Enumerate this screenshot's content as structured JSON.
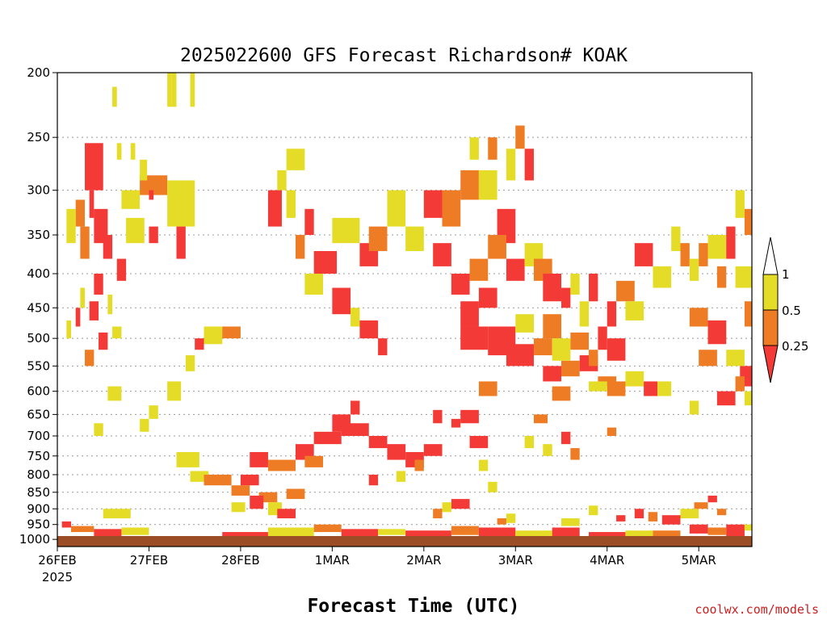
{
  "chart_data": {
    "type": "heatmap",
    "title": "2025022600 GFS Forecast Richardson# KOAK",
    "xlabel": "Forecast Time (UTC)",
    "ylabel": "",
    "credit": "coolwx.com/models",
    "x_tick_labels": [
      "26FEB",
      "27FEB",
      "28FEB",
      "1MAR",
      "2MAR",
      "3MAR",
      "4MAR",
      "5MAR"
    ],
    "x_year_label": "2025",
    "x_range_days": [
      0,
      7.58
    ],
    "y_ticks": [
      200,
      250,
      300,
      350,
      400,
      450,
      500,
      550,
      600,
      650,
      700,
      750,
      800,
      850,
      900,
      950,
      1000
    ],
    "y_units": "hPa",
    "y_range": [
      200,
      1025
    ],
    "gridlines": "dotted",
    "colorbar": {
      "labels": [
        "1",
        "0.5",
        "0.25"
      ],
      "classes": [
        {
          "range": "0.5-1",
          "color": "#e5dc28"
        },
        {
          "range": "0.25-0.5",
          "color": "#ee7c24"
        },
        {
          "range": "<0.25",
          "color": "#f43a36"
        }
      ]
    },
    "surface_color": "#9b4d26",
    "cells": [
      [
        0.3,
        0.5,
        255,
        300,
        2
      ],
      [
        0.35,
        0.4,
        300,
        330,
        2
      ],
      [
        0.2,
        0.3,
        310,
        340,
        1
      ],
      [
        0.4,
        0.55,
        320,
        360,
        2
      ],
      [
        0.25,
        0.35,
        340,
        380,
        1
      ],
      [
        0.1,
        0.2,
        320,
        360,
        0
      ],
      [
        0.5,
        0.6,
        350,
        380,
        2
      ],
      [
        0.7,
        0.9,
        300,
        320,
        0
      ],
      [
        0.9,
        1.2,
        285,
        305,
        1
      ],
      [
        0.9,
        0.98,
        270,
        290,
        0
      ],
      [
        1.0,
        1.05,
        300,
        310,
        2
      ],
      [
        1.2,
        1.5,
        290,
        340,
        0
      ],
      [
        0.75,
        0.95,
        330,
        360,
        0
      ],
      [
        1.3,
        1.4,
        340,
        380,
        2
      ],
      [
        1.0,
        1.1,
        340,
        360,
        2
      ],
      [
        0.65,
        0.7,
        255,
        270,
        0
      ],
      [
        0.8,
        0.85,
        255,
        270,
        0
      ],
      [
        0.6,
        0.65,
        210,
        225,
        0
      ],
      [
        1.2,
        1.25,
        200,
        225,
        0
      ],
      [
        1.25,
        1.3,
        200,
        225,
        0
      ],
      [
        1.45,
        1.5,
        200,
        225,
        0
      ],
      [
        0.65,
        0.75,
        380,
        410,
        2
      ],
      [
        0.4,
        0.5,
        400,
        430,
        2
      ],
      [
        0.25,
        0.3,
        420,
        450,
        0
      ],
      [
        0.35,
        0.45,
        440,
        470,
        2
      ],
      [
        0.55,
        0.6,
        430,
        460,
        0
      ],
      [
        0.2,
        0.25,
        450,
        480,
        2
      ],
      [
        0.1,
        0.15,
        470,
        500,
        0
      ],
      [
        0.45,
        0.55,
        490,
        520,
        2
      ],
      [
        0.6,
        0.7,
        480,
        500,
        0
      ],
      [
        0.3,
        0.4,
        520,
        550,
        1
      ],
      [
        1.6,
        1.8,
        480,
        510,
        0
      ],
      [
        1.8,
        2.0,
        480,
        500,
        1
      ],
      [
        1.5,
        1.6,
        500,
        520,
        2
      ],
      [
        1.4,
        1.5,
        530,
        560,
        0
      ],
      [
        1.2,
        1.35,
        580,
        620,
        0
      ],
      [
        1.0,
        1.1,
        630,
        660,
        0
      ],
      [
        0.9,
        1.0,
        660,
        690,
        0
      ],
      [
        0.55,
        0.7,
        590,
        620,
        0
      ],
      [
        0.4,
        0.5,
        670,
        700,
        0
      ],
      [
        1.3,
        1.55,
        740,
        780,
        0
      ],
      [
        1.45,
        1.65,
        790,
        820,
        0
      ],
      [
        1.6,
        1.9,
        800,
        830,
        1
      ],
      [
        1.9,
        2.1,
        830,
        860,
        1
      ],
      [
        2.0,
        2.2,
        800,
        830,
        2
      ],
      [
        2.2,
        2.4,
        850,
        880,
        1
      ],
      [
        2.3,
        2.45,
        880,
        920,
        0
      ],
      [
        2.5,
        2.7,
        840,
        870,
        1
      ],
      [
        2.4,
        2.6,
        900,
        930,
        2
      ],
      [
        2.1,
        2.25,
        860,
        900,
        2
      ],
      [
        1.9,
        2.05,
        880,
        910,
        0
      ],
      [
        2.1,
        2.3,
        740,
        780,
        2
      ],
      [
        2.3,
        2.6,
        760,
        790,
        1
      ],
      [
        2.6,
        2.8,
        720,
        760,
        2
      ],
      [
        2.8,
        3.1,
        690,
        720,
        2
      ],
      [
        2.7,
        2.9,
        750,
        780,
        1
      ],
      [
        3.0,
        3.2,
        650,
        690,
        2
      ],
      [
        3.1,
        3.4,
        670,
        700,
        2
      ],
      [
        3.2,
        3.3,
        620,
        650,
        2
      ],
      [
        3.4,
        3.6,
        700,
        730,
        2
      ],
      [
        3.6,
        3.8,
        720,
        760,
        2
      ],
      [
        3.8,
        4.0,
        740,
        780,
        2
      ],
      [
        3.9,
        4.0,
        760,
        790,
        1
      ],
      [
        4.0,
        4.2,
        720,
        750,
        2
      ],
      [
        4.1,
        4.2,
        640,
        670,
        2
      ],
      [
        4.3,
        4.4,
        660,
        680,
        2
      ],
      [
        3.7,
        3.8,
        790,
        820,
        0
      ],
      [
        3.4,
        3.5,
        800,
        830,
        2
      ],
      [
        2.5,
        2.7,
        260,
        280,
        0
      ],
      [
        2.4,
        2.5,
        280,
        300,
        0
      ],
      [
        2.3,
        2.45,
        300,
        340,
        2
      ],
      [
        2.5,
        2.6,
        300,
        330,
        0
      ],
      [
        2.7,
        2.8,
        320,
        350,
        2
      ],
      [
        2.6,
        2.7,
        350,
        380,
        1
      ],
      [
        2.8,
        3.05,
        370,
        400,
        2
      ],
      [
        2.7,
        2.9,
        400,
        430,
        0
      ],
      [
        3.0,
        3.2,
        420,
        460,
        2
      ],
      [
        3.2,
        3.3,
        450,
        480,
        0
      ],
      [
        3.3,
        3.5,
        470,
        500,
        2
      ],
      [
        3.5,
        3.6,
        500,
        530,
        2
      ],
      [
        3.0,
        3.3,
        330,
        360,
        0
      ],
      [
        3.3,
        3.5,
        360,
        390,
        2
      ],
      [
        3.4,
        3.6,
        340,
        370,
        1
      ],
      [
        3.6,
        3.8,
        300,
        340,
        0
      ],
      [
        3.8,
        4.0,
        340,
        370,
        0
      ],
      [
        4.0,
        4.2,
        300,
        330,
        2
      ],
      [
        4.2,
        4.4,
        300,
        340,
        1
      ],
      [
        4.4,
        4.6,
        280,
        310,
        1
      ],
      [
        4.6,
        4.8,
        280,
        310,
        0
      ],
      [
        4.1,
        4.3,
        360,
        390,
        2
      ],
      [
        4.3,
        4.5,
        400,
        430,
        2
      ],
      [
        4.5,
        4.7,
        380,
        410,
        1
      ],
      [
        4.6,
        4.8,
        420,
        450,
        2
      ],
      [
        4.4,
        4.6,
        440,
        480,
        2
      ],
      [
        4.8,
        5.0,
        320,
        360,
        2
      ],
      [
        4.9,
        5.0,
        260,
        290,
        0
      ],
      [
        5.0,
        5.1,
        240,
        260,
        1
      ],
      [
        4.5,
        4.6,
        250,
        270,
        0
      ],
      [
        4.7,
        4.8,
        250,
        270,
        1
      ],
      [
        5.1,
        5.2,
        260,
        290,
        2
      ],
      [
        4.7,
        4.9,
        350,
        380,
        1
      ],
      [
        4.9,
        5.1,
        380,
        410,
        2
      ],
      [
        5.1,
        5.3,
        360,
        390,
        0
      ],
      [
        5.2,
        5.4,
        380,
        410,
        1
      ],
      [
        5.3,
        5.5,
        400,
        440,
        2
      ],
      [
        4.4,
        4.7,
        480,
        520,
        2
      ],
      [
        4.7,
        5.0,
        480,
        530,
        2
      ],
      [
        4.9,
        5.2,
        510,
        550,
        2
      ],
      [
        5.2,
        5.4,
        500,
        530,
        1
      ],
      [
        5.0,
        5.2,
        460,
        490,
        0
      ],
      [
        5.3,
        5.5,
        460,
        500,
        1
      ],
      [
        5.3,
        5.5,
        550,
        580,
        2
      ],
      [
        5.5,
        5.7,
        540,
        570,
        1
      ],
      [
        5.4,
        5.6,
        500,
        540,
        0
      ],
      [
        5.6,
        5.8,
        490,
        520,
        1
      ],
      [
        5.7,
        5.9,
        530,
        560,
        2
      ],
      [
        5.9,
        6.1,
        570,
        590,
        1
      ],
      [
        4.6,
        4.8,
        580,
        610,
        1
      ],
      [
        4.4,
        4.6,
        640,
        670,
        2
      ],
      [
        4.5,
        4.7,
        700,
        730,
        2
      ],
      [
        4.6,
        4.7,
        760,
        790,
        0
      ],
      [
        4.7,
        4.8,
        820,
        850,
        0
      ],
      [
        4.3,
        4.5,
        870,
        900,
        2
      ],
      [
        4.1,
        4.2,
        900,
        930,
        1
      ],
      [
        4.2,
        4.3,
        880,
        910,
        0
      ],
      [
        5.5,
        5.6,
        420,
        450,
        2
      ],
      [
        5.6,
        5.7,
        400,
        430,
        0
      ],
      [
        5.7,
        5.8,
        440,
        480,
        0
      ],
      [
        5.8,
        5.9,
        400,
        440,
        2
      ],
      [
        5.9,
        6.0,
        480,
        520,
        2
      ],
      [
        5.8,
        5.9,
        520,
        550,
        1
      ],
      [
        6.0,
        6.2,
        500,
        540,
        2
      ],
      [
        5.4,
        5.6,
        590,
        620,
        1
      ],
      [
        6.0,
        6.1,
        440,
        480,
        2
      ],
      [
        6.1,
        6.3,
        410,
        440,
        1
      ],
      [
        6.2,
        6.4,
        440,
        470,
        0
      ],
      [
        6.3,
        6.5,
        360,
        390,
        2
      ],
      [
        6.5,
        6.7,
        390,
        420,
        0
      ],
      [
        6.2,
        6.4,
        560,
        590,
        0
      ],
      [
        6.4,
        6.55,
        580,
        610,
        2
      ],
      [
        6.55,
        6.7,
        580,
        610,
        0
      ],
      [
        6.0,
        6.2,
        580,
        610,
        1
      ],
      [
        6.7,
        6.8,
        340,
        370,
        0
      ],
      [
        6.8,
        6.9,
        360,
        390,
        1
      ],
      [
        6.9,
        7.0,
        380,
        410,
        0
      ],
      [
        7.0,
        7.1,
        360,
        390,
        1
      ],
      [
        7.1,
        7.3,
        350,
        380,
        0
      ],
      [
        7.2,
        7.3,
        390,
        420,
        1
      ],
      [
        7.3,
        7.4,
        340,
        380,
        2
      ],
      [
        7.4,
        7.5,
        300,
        330,
        0
      ],
      [
        7.5,
        7.58,
        320,
        350,
        1
      ],
      [
        7.4,
        7.58,
        390,
        420,
        0
      ],
      [
        7.5,
        7.58,
        440,
        480,
        1
      ],
      [
        7.45,
        7.58,
        550,
        590,
        2
      ],
      [
        7.5,
        7.58,
        600,
        630,
        0
      ],
      [
        6.9,
        7.1,
        450,
        480,
        1
      ],
      [
        7.1,
        7.3,
        470,
        510,
        2
      ],
      [
        7.3,
        7.5,
        520,
        550,
        0
      ],
      [
        7.0,
        7.2,
        520,
        550,
        1
      ],
      [
        6.9,
        7.0,
        620,
        650,
        0
      ],
      [
        7.2,
        7.4,
        600,
        630,
        2
      ],
      [
        7.4,
        7.5,
        570,
        600,
        1
      ],
      [
        5.8,
        6.0,
        580,
        600,
        0
      ],
      [
        6.0,
        6.1,
        680,
        700,
        1
      ],
      [
        5.2,
        5.35,
        650,
        670,
        1
      ],
      [
        5.5,
        5.6,
        690,
        720,
        2
      ],
      [
        5.1,
        5.2,
        700,
        730,
        0
      ],
      [
        5.3,
        5.4,
        720,
        750,
        0
      ],
      [
        5.6,
        5.7,
        730,
        760,
        1
      ],
      [
        0.05,
        0.15,
        940,
        960,
        2
      ],
      [
        0.15,
        0.4,
        955,
        975,
        1
      ],
      [
        0.4,
        0.7,
        965,
        990,
        2
      ],
      [
        0.7,
        1.0,
        960,
        985,
        0
      ],
      [
        0.5,
        0.8,
        900,
        930,
        0
      ],
      [
        1.8,
        2.3,
        975,
        995,
        2
      ],
      [
        2.3,
        2.8,
        960,
        990,
        0
      ],
      [
        2.8,
        3.1,
        950,
        975,
        1
      ],
      [
        3.1,
        3.5,
        965,
        990,
        2
      ],
      [
        3.5,
        3.8,
        965,
        985,
        0
      ],
      [
        3.8,
        4.3,
        970,
        990,
        2
      ],
      [
        4.3,
        4.6,
        955,
        985,
        1
      ],
      [
        4.6,
        5.0,
        960,
        990,
        2
      ],
      [
        5.0,
        5.4,
        970,
        995,
        0
      ],
      [
        5.4,
        5.7,
        960,
        990,
        2
      ],
      [
        5.8,
        6.2,
        975,
        995,
        2
      ],
      [
        6.2,
        6.5,
        970,
        990,
        0
      ],
      [
        6.5,
        6.8,
        970,
        995,
        1
      ],
      [
        5.5,
        5.7,
        930,
        955,
        0
      ],
      [
        6.9,
        7.1,
        950,
        980,
        2
      ],
      [
        7.1,
        7.3,
        960,
        985,
        1
      ],
      [
        7.3,
        7.5,
        950,
        990,
        2
      ],
      [
        7.5,
        7.58,
        950,
        970,
        0
      ],
      [
        6.6,
        6.8,
        920,
        950,
        2
      ],
      [
        6.8,
        7.0,
        900,
        930,
        0
      ],
      [
        6.95,
        7.1,
        880,
        900,
        1
      ],
      [
        7.1,
        7.2,
        860,
        880,
        2
      ],
      [
        7.2,
        7.3,
        900,
        920,
        1
      ],
      [
        6.3,
        6.4,
        900,
        930,
        2
      ],
      [
        6.45,
        6.55,
        910,
        940,
        1
      ],
      [
        5.8,
        5.9,
        890,
        920,
        0
      ],
      [
        6.1,
        6.2,
        920,
        940,
        2
      ],
      [
        4.9,
        5.0,
        915,
        945,
        0
      ],
      [
        4.8,
        4.9,
        930,
        950,
        1
      ]
    ]
  }
}
